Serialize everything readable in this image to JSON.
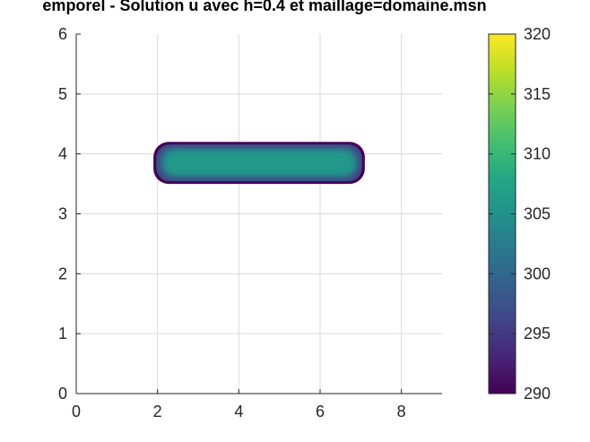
{
  "chart_data": {
    "type": "heatmap",
    "title": "emporel - Solution u avec h=0.4 et maillage=domaine.msn",
    "xlabel": "",
    "ylabel": "",
    "xlim": [
      0,
      9
    ],
    "ylim": [
      0,
      6
    ],
    "grid": true,
    "x_ticks": [
      0,
      2,
      4,
      6,
      8
    ],
    "x_tick_labels": [
      "0",
      "2",
      "4",
      "6",
      "8"
    ],
    "y_ticks": [
      0,
      1,
      2,
      3,
      4,
      5,
      6
    ],
    "y_tick_labels": [
      "0",
      "1",
      "2",
      "3",
      "4",
      "5",
      "6"
    ],
    "colormap": "viridis",
    "colorbar": {
      "limits": [
        290,
        320
      ],
      "ticks": [
        290,
        295,
        300,
        305,
        310,
        315,
        320
      ],
      "tick_labels": [
        "290",
        "295",
        "300",
        "305",
        "310",
        "315",
        "320"
      ],
      "placement": "right"
    },
    "region": {
      "shape": "rounded-rectangle",
      "x_range": [
        1.9,
        7.1
      ],
      "y_range": [
        3.5,
        4.2
      ],
      "center_value": 306,
      "boundary_value": 290
    }
  }
}
